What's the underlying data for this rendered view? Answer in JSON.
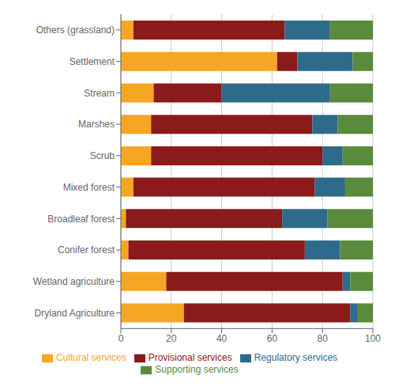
{
  "chart_data": {
    "type": "bar",
    "orientation": "horizontal",
    "stacked": true,
    "grid": true,
    "legend": "bottom",
    "categories": [
      "Dryland Agriculture",
      "Wetland agriculture",
      "Conifer forest",
      "Broadleaf forest",
      "Mixed forest",
      "Scrub",
      "Marshes",
      "Stream",
      "Settlement",
      "Others (grassland)"
    ],
    "series": [
      {
        "name": "Cultural services",
        "color": "#F5A623",
        "values": [
          25,
          18,
          3,
          2,
          5,
          12,
          12,
          13,
          62,
          5
        ]
      },
      {
        "name": "Provisional services",
        "color": "#8B1A1A",
        "values": [
          66,
          70,
          70,
          62,
          72,
          68,
          64,
          27,
          8,
          60
        ]
      },
      {
        "name": "Regulatory services",
        "color": "#2E6B8A",
        "values": [
          3,
          3,
          14,
          18,
          12,
          8,
          10,
          43,
          22,
          18
        ]
      },
      {
        "name": "Supporting services",
        "color": "#5A8A3C",
        "values": [
          6,
          9,
          13,
          18,
          11,
          12,
          14,
          17,
          8,
          17
        ]
      }
    ],
    "xlim": [
      0,
      100
    ],
    "xticks": [
      0,
      20,
      40,
      60,
      80,
      100
    ]
  }
}
